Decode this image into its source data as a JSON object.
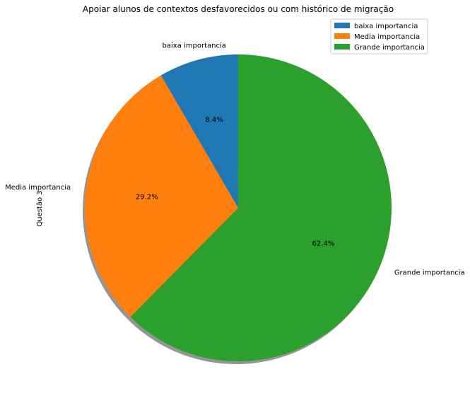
{
  "chart_data": {
    "type": "pie",
    "title": "Apoiar alunos de contextos desfavorecidos ou com histórico de migração",
    "ylabel": "Questão 3",
    "slices": [
      {
        "label": "baixa importancia",
        "value": 8.4,
        "pct_label": "8.4%",
        "color": "#1f77b4"
      },
      {
        "label": "Media importancia",
        "value": 29.2,
        "pct_label": "29.2%",
        "color": "#ff7f0e"
      },
      {
        "label": "Grande importancia",
        "value": 62.4,
        "pct_label": "62.4%",
        "color": "#2ca02c"
      }
    ],
    "start_angle": 90,
    "direction": "counterclockwise",
    "shadow": true,
    "legend": {
      "placement": "top-right",
      "entries": [
        "baixa importancia",
        "Media importancia",
        "Grande importancia"
      ]
    }
  }
}
